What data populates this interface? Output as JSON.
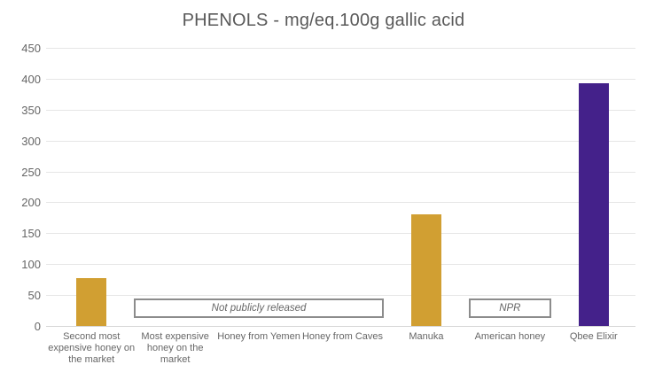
{
  "title": "PHENOLS - mg/eq.100g gallic acid",
  "colors": {
    "gold": "#D19F32",
    "purple": "#44218A",
    "grid": "#E6E6E6",
    "axis_line": "#D6D6D6",
    "axis_text": "#666666",
    "title_text": "#595959",
    "annotation_border": "#8C8C8C"
  },
  "chart_data": {
    "type": "bar",
    "title": "PHENOLS - mg/eq.100g gallic acid",
    "categories": [
      "Second most expensive honey on the market",
      "Most expensive honey on the market",
      "Honey from Yemen",
      "Honey from Caves",
      "Manuka",
      "American honey",
      "Qbee Elixir"
    ],
    "values": [
      78,
      null,
      null,
      null,
      180,
      null,
      392
    ],
    "bar_colors": [
      "#D19F32",
      null,
      null,
      null,
      "#D19F32",
      null,
      "#44218A"
    ],
    "xlabel": "",
    "ylabel": "",
    "ylim": [
      0,
      450
    ],
    "ytick_step": 50,
    "yticks": [
      0,
      50,
      100,
      150,
      200,
      250,
      300,
      350,
      400,
      450
    ],
    "grid": true,
    "legend": false,
    "annotations": [
      {
        "label": "Not publicly released",
        "span_start": 1,
        "span_end": 3
      },
      {
        "label": "NPR",
        "span_start": 5,
        "span_end": 5
      }
    ]
  }
}
